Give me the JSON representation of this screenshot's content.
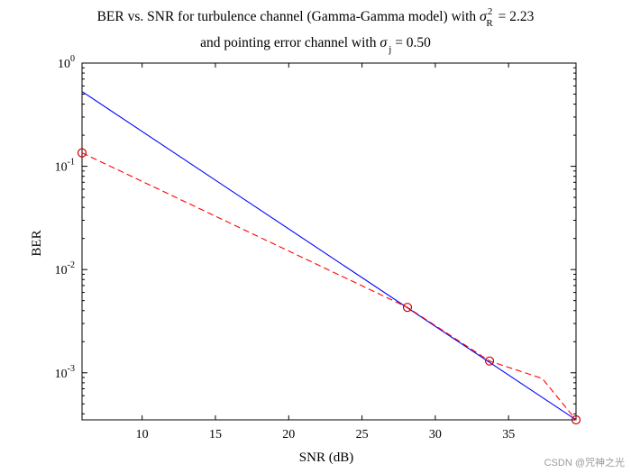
{
  "watermark": "CSDN @咒神之光",
  "chart_data": {
    "type": "line",
    "title": {
      "line1_prefix": "BER vs. SNR for turbulence channel (Gamma-Gamma model) with ",
      "line1_symbol": "σ",
      "line1_sup": "2",
      "line1_sub": "R",
      "line1_value": " = 2.23",
      "line2_prefix": "and pointing error channel with ",
      "line2_symbol": "σ",
      "line2_sub": "j",
      "line2_value": " = 0.50"
    },
    "xlabel": "SNR (dB)",
    "ylabel": "BER",
    "x_scale": "linear",
    "y_scale": "log",
    "xlim": [
      5.9,
      39.6
    ],
    "ylim": [
      0.00035,
      1
    ],
    "x_ticks": [
      10,
      15,
      20,
      25,
      30,
      35
    ],
    "x_tick_labels": [
      "10",
      "15",
      "20",
      "25",
      "30",
      "35"
    ],
    "y_ticks": [
      {
        "value": 1,
        "base": "10",
        "exp": "0"
      },
      {
        "value": 0.1,
        "base": "10",
        "exp": "-1"
      },
      {
        "value": 0.01,
        "base": "10",
        "exp": "-2"
      },
      {
        "value": 0.001,
        "base": "10",
        "exp": "-3"
      }
    ],
    "grid": false,
    "legend": "none",
    "series": [
      {
        "style": "solid",
        "color": "#0000ff",
        "marker": "none",
        "x": [
          5.9,
          39.6
        ],
        "y": [
          0.53,
          0.00035
        ]
      },
      {
        "style": "dashed",
        "color": "#ff0000",
        "marker": "none",
        "x": [
          5.9,
          28.1,
          33.7,
          37.3,
          39.6
        ],
        "y": [
          0.135,
          0.0043,
          0.0013,
          0.00088,
          0.00035
        ]
      },
      {
        "style": "markers",
        "color": "#cc0000",
        "marker": "circle",
        "x": [
          5.9,
          28.1,
          33.7,
          39.6
        ],
        "y": [
          0.135,
          0.0043,
          0.0013,
          0.00035
        ]
      }
    ]
  }
}
